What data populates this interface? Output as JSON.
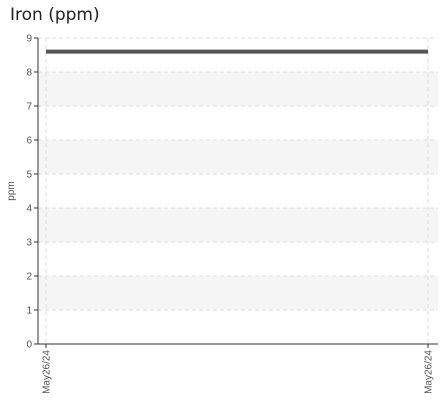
{
  "chart_data": {
    "type": "line",
    "title": "Iron (ppm)",
    "y_label": "ppm",
    "categories": [
      "May26/24",
      "May26/24"
    ],
    "series": [
      {
        "name": "Iron",
        "color": "#555555",
        "values": [
          8.6,
          8.6
        ]
      }
    ],
    "ylim": [
      0,
      9
    ],
    "yticks": [
      0,
      1,
      2,
      3,
      4,
      5,
      6,
      7,
      8,
      9
    ],
    "grid": true,
    "band_shading": true
  }
}
